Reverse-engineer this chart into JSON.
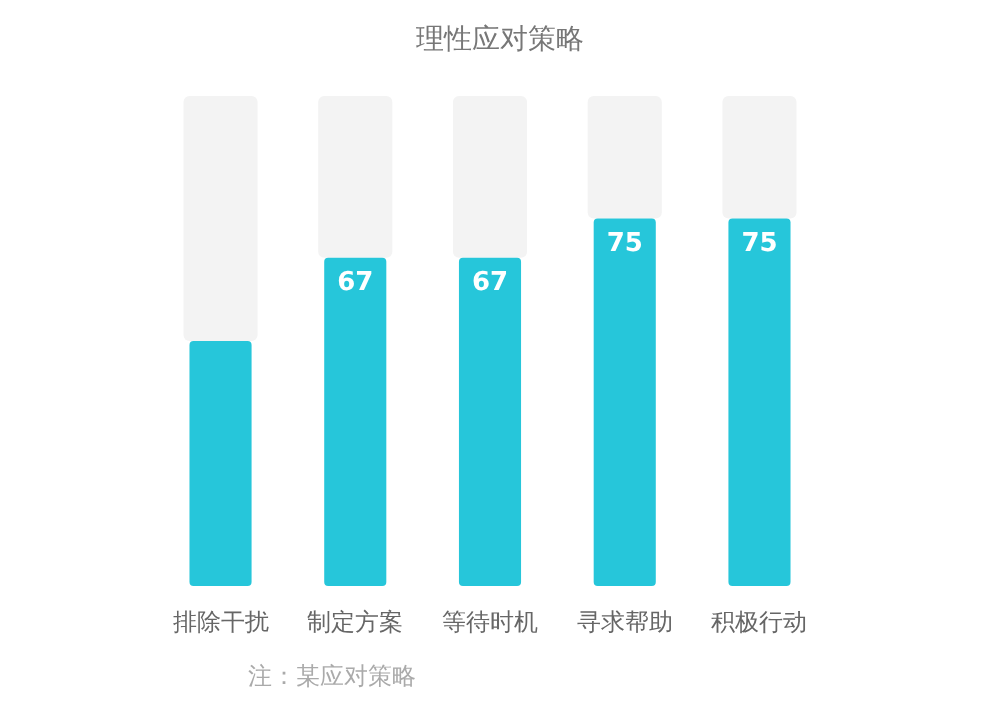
{
  "chart_data": {
    "type": "bar",
    "title": "理性应对策略",
    "categories": [
      "排除干扰",
      "制定方案",
      "等待时机",
      "寻求帮助",
      "积极行动"
    ],
    "values": [
      50,
      67,
      67,
      75,
      75
    ],
    "value_labels": [
      null,
      "67",
      "67",
      "75",
      "75"
    ],
    "color": "#26c6da",
    "ylim": [
      0,
      100
    ],
    "tick_labels": "x",
    "annotations": [
      "注：某应对策略"
    ]
  }
}
